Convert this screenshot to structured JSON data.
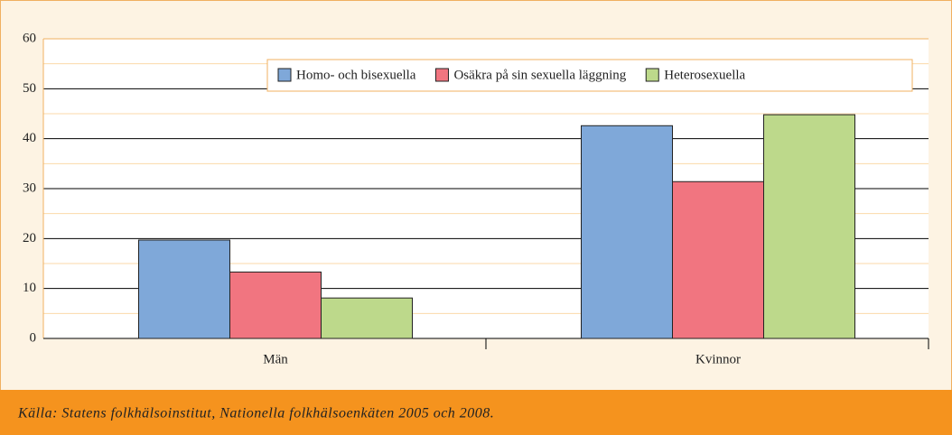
{
  "chart_data": {
    "type": "bar",
    "categories": [
      "Män",
      "Kvinnor"
    ],
    "series": [
      {
        "name": "Homo- och bisexuella",
        "color": "#7fa8d9",
        "values": [
          19.7,
          42.6
        ]
      },
      {
        "name": "Osäkra på sin sexuella läggning",
        "color": "#f17580",
        "values": [
          13.3,
          31.4
        ]
      },
      {
        "name": "Heterosexuella",
        "color": "#bdd98b",
        "values": [
          8.1,
          44.8
        ]
      }
    ],
    "ylim": [
      0,
      60
    ],
    "yticks": [
      0,
      10,
      20,
      30,
      40,
      50,
      60
    ],
    "grid": true,
    "source": "Källa: Statens folkhälsoinstitut, Nationella folkhälsoenkäten 2005 och 2008."
  }
}
